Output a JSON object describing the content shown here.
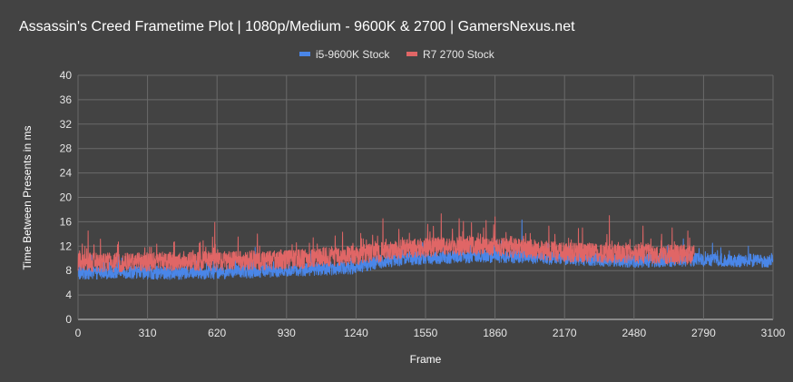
{
  "chart_data": {
    "type": "line",
    "title": "Assassin's Creed Frametime Plot | 1080p/Medium - 9600K & 2700 | GamersNexus.net",
    "xlabel": "Frame",
    "ylabel": "Time Between Presents in ms",
    "xlim": [
      0,
      3100
    ],
    "ylim": [
      0,
      40
    ],
    "x_ticks": [
      "0",
      "310",
      "620",
      "930",
      "1240",
      "1550",
      "1860",
      "2170",
      "2480",
      "2790",
      "3100"
    ],
    "y_ticks": [
      "0",
      "4",
      "8",
      "12",
      "16",
      "20",
      "24",
      "28",
      "32",
      "36",
      "40"
    ],
    "grid": true,
    "legend_position": "top",
    "background": "#434343",
    "series": [
      {
        "name": "i5-9600K Stock",
        "color": "#4a86e8",
        "n_frames": 3100,
        "x": [
          0,
          200,
          400,
          620,
          800,
          1000,
          1240,
          1350,
          1450,
          1550,
          1700,
          1860,
          2000,
          2170,
          2300,
          2480,
          2650,
          2790,
          2950,
          3100
        ],
        "values": [
          7.6,
          7.8,
          7.6,
          7.7,
          7.9,
          8.2,
          8.5,
          9.5,
          9.9,
          10.1,
          10.3,
          10.4,
          10.2,
          10.0,
          9.8,
          9.6,
          9.7,
          9.8,
          9.7,
          9.6
        ],
        "spikes": [
          [
            60,
            10.5
          ],
          [
            180,
            11
          ],
          [
            790,
            11.8
          ],
          [
            1040,
            11.2
          ],
          [
            1980,
            16.3
          ],
          [
            2700,
            13.2
          ],
          [
            2830,
            12.5
          ],
          [
            2990,
            12
          ]
        ]
      },
      {
        "name": "R7 2700 Stock",
        "color": "#e06666",
        "n_frames": 2750,
        "x": [
          0,
          200,
          400,
          620,
          800,
          1000,
          1100,
          1240,
          1350,
          1450,
          1550,
          1700,
          1860,
          1950,
          2050,
          2170,
          2300,
          2480,
          2600,
          2750
        ],
        "values": [
          9.3,
          9.4,
          9.5,
          9.6,
          9.7,
          9.9,
          10.3,
          10.5,
          11.0,
          11.5,
          11.8,
          12.0,
          12.0,
          11.7,
          11.4,
          11.0,
          10.9,
          10.8,
          10.7,
          10.6
        ],
        "spikes": [
          [
            45,
            14.5
          ],
          [
            180,
            12.7
          ],
          [
            610,
            15.9
          ],
          [
            600,
            13.5
          ],
          [
            800,
            14.0
          ],
          [
            1180,
            14.3
          ],
          [
            1360,
            16.5
          ],
          [
            1560,
            15.6
          ],
          [
            1620,
            17.3
          ],
          [
            1700,
            16.5
          ],
          [
            1820,
            16.2
          ],
          [
            1860,
            16.8
          ],
          [
            2100,
            15.3
          ],
          [
            2250,
            15.0
          ],
          [
            2370,
            17.0
          ],
          [
            2520,
            15.3
          ],
          [
            2650,
            15.0
          ],
          [
            2720,
            14.5
          ]
        ]
      }
    ]
  }
}
